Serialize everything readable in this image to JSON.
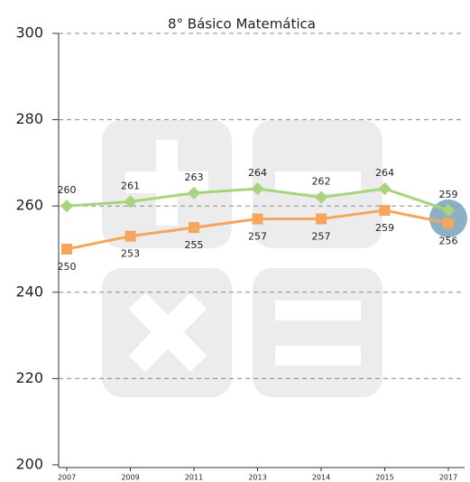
{
  "chart_data": {
    "type": "line",
    "title": "8° Básico Matemática",
    "categories": [
      "2007",
      "2009",
      "2011",
      "2013",
      "2014",
      "2015",
      "2017"
    ],
    "series": [
      {
        "color": "#a8d57c",
        "values": [
          260,
          261,
          263,
          264,
          262,
          264,
          259
        ]
      },
      {
        "color": "#f5a55c",
        "values": [
          250,
          253,
          255,
          257,
          257,
          259,
          256
        ]
      }
    ],
    "ylim": [
      200,
      300
    ],
    "yticks": [
      200,
      220,
      240,
      260,
      280,
      300
    ],
    "grid": true
  }
}
